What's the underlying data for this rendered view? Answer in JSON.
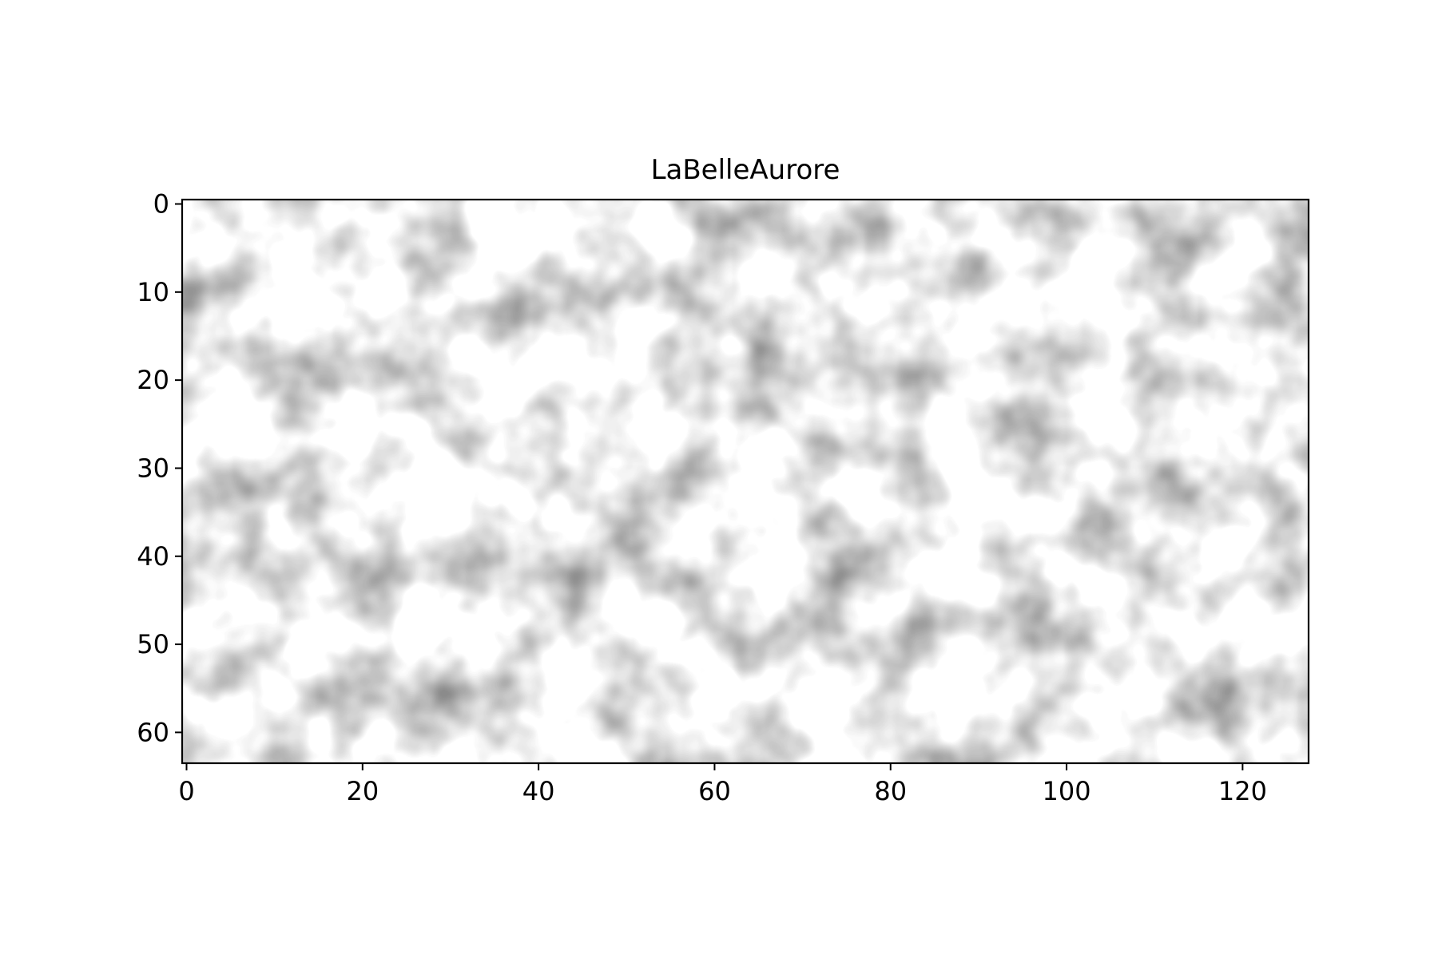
{
  "chart_data": {
    "type": "image",
    "title": "LaBelleAurore",
    "image_text": "artificial",
    "image_width": 128,
    "image_height": 64,
    "xlim": [
      -0.5,
      127.5
    ],
    "ylim": [
      63.5,
      -0.5
    ],
    "x_ticks": [
      0,
      20,
      40,
      60,
      80,
      100,
      120
    ],
    "y_ticks": [
      0,
      10,
      20,
      30,
      40,
      50,
      60
    ],
    "x_tick_labels": [
      "0",
      "20",
      "40",
      "60",
      "80",
      "100",
      "120"
    ],
    "y_tick_labels": [
      "0",
      "10",
      "20",
      "30",
      "40",
      "50",
      "60"
    ],
    "colormap": "gray",
    "grid": false,
    "colors": {
      "background": "#ffffff",
      "ink": "#111111",
      "axes": "#000000"
    }
  }
}
